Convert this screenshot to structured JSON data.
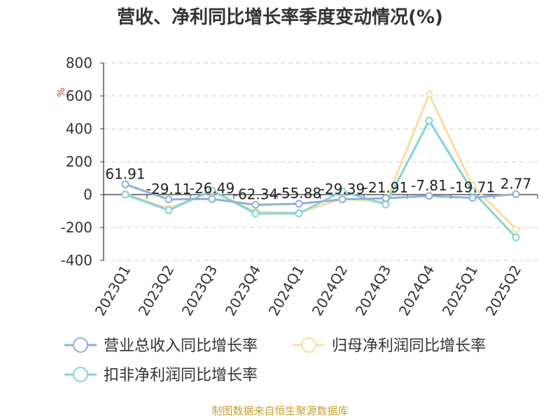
{
  "chart_data": {
    "type": "line",
    "title": "营收、净利同比增长率季度变动情况(%)",
    "ylabel": "%",
    "ylim": [
      -400,
      800
    ],
    "yticks": [
      800,
      600,
      400,
      200,
      0,
      -200,
      -400
    ],
    "grid": true,
    "legend_position": "bottom",
    "categories": [
      "2023Q1",
      "2023Q2",
      "2023Q3",
      "2023Q4",
      "2024Q1",
      "2024Q2",
      "2024Q3",
      "2024Q4",
      "2025Q1",
      "2025Q2"
    ],
    "series": [
      {
        "name": "营业总收入同比增长率",
        "color": "#8fb0dc",
        "values": [
          61.91,
          -29.11,
          -26.49,
          -62.34,
          -55.88,
          -29.39,
          -21.91,
          -7.81,
          -19.71,
          2.77
        ],
        "labels": [
          "61.91",
          "-29.11",
          "-26.49",
          "-62.34",
          "-55.88",
          "-29.39",
          "-21.91",
          "-7.81",
          "-19.71",
          "2.77"
        ]
      },
      {
        "name": "归母净利润同比增长率",
        "color": "#fadc9f",
        "values": [
          5,
          -85,
          20,
          -105,
          -110,
          -25,
          -45,
          610,
          55,
          -210
        ]
      },
      {
        "name": "扣非净利润同比增长率",
        "color": "#84d3d8",
        "values": [
          0,
          -95,
          25,
          -115,
          -115,
          20,
          -60,
          450,
          20,
          -260
        ]
      }
    ]
  },
  "footer": {
    "source": "制图数据来自恒生聚源数据库"
  }
}
